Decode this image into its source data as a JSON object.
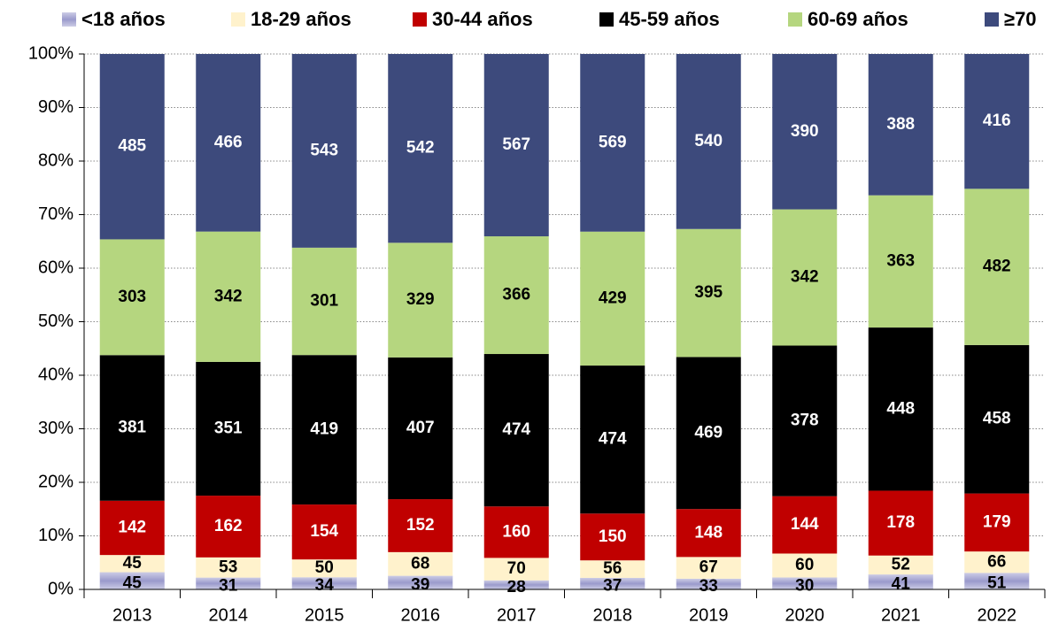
{
  "chart_data": {
    "type": "stacked_percent_bar",
    "categories": [
      "2013",
      "2014",
      "2015",
      "2016",
      "2017",
      "2018",
      "2019",
      "2020",
      "2021",
      "2022"
    ],
    "series": [
      {
        "name": "<18 años",
        "color": "#9a9acc",
        "label_color": "#000000",
        "values": [
          45,
          31,
          34,
          39,
          28,
          37,
          33,
          30,
          41,
          51
        ]
      },
      {
        "name": "18-29 años",
        "color": "#fff2cc",
        "label_color": "#000000",
        "values": [
          45,
          53,
          50,
          68,
          70,
          56,
          67,
          60,
          52,
          66
        ]
      },
      {
        "name": "30-44 años",
        "color": "#c00000",
        "label_color": "#ffffff",
        "values": [
          142,
          162,
          154,
          152,
          160,
          150,
          148,
          144,
          178,
          179
        ]
      },
      {
        "name": "45-59 años",
        "color": "#000000",
        "label_color": "#ffffff",
        "values": [
          381,
          351,
          419,
          407,
          474,
          474,
          469,
          378,
          448,
          458
        ]
      },
      {
        "name": "60-69 años",
        "color": "#b5d67f",
        "label_color": "#000000",
        "values": [
          303,
          342,
          301,
          329,
          366,
          429,
          395,
          342,
          363,
          482
        ]
      },
      {
        "name": "≥70",
        "color": "#3d4a7c",
        "label_color": "#ffffff",
        "values": [
          485,
          466,
          543,
          542,
          567,
          569,
          540,
          390,
          388,
          416
        ]
      }
    ],
    "ylim": [
      0,
      100
    ],
    "yticks": [
      {
        "value": 0,
        "label": "0%"
      },
      {
        "value": 10,
        "label": "10%"
      },
      {
        "value": 20,
        "label": "20%"
      },
      {
        "value": 30,
        "label": "30%"
      },
      {
        "value": 40,
        "label": "40%"
      },
      {
        "value": 50,
        "label": "50%"
      },
      {
        "value": 60,
        "label": "60%"
      },
      {
        "value": 70,
        "label": "70%"
      },
      {
        "value": 80,
        "label": "80%"
      },
      {
        "value": 90,
        "label": "90%"
      },
      {
        "value": 100,
        "label": "100%"
      }
    ],
    "grid": true,
    "legend": "top"
  }
}
